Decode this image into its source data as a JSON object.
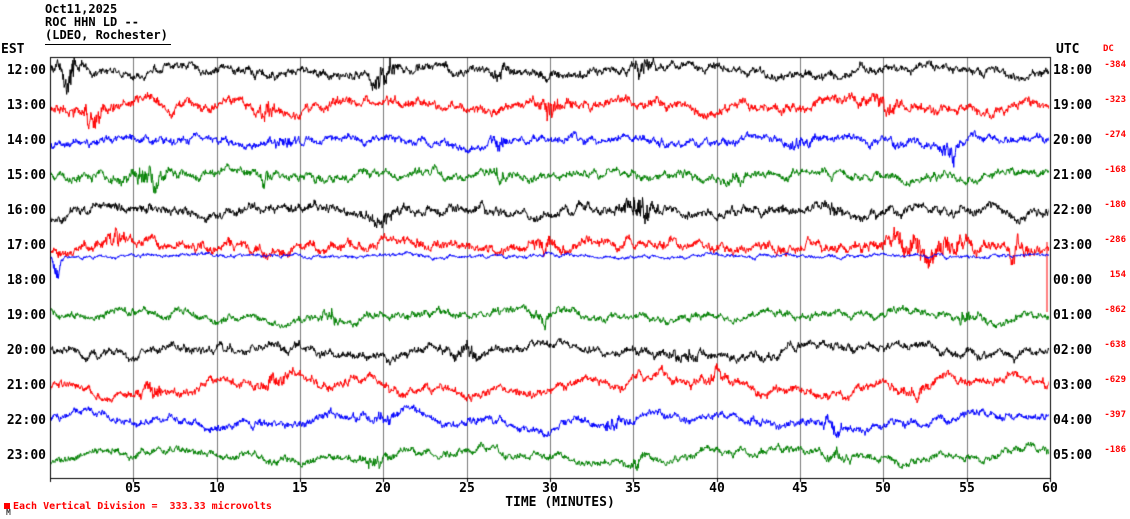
{
  "header": {
    "date": "Oct11,2025",
    "station": "ROC HHN LD --",
    "location": "(LDEO, Rochester)"
  },
  "axes": {
    "left_label": "EST",
    "right_label": "UTC",
    "dc_label": "DC",
    "x_title": "TIME (MINUTES)",
    "x_ticks": [
      "05",
      "10",
      "15",
      "20",
      "25",
      "30",
      "35",
      "40",
      "45",
      "50",
      "55",
      "60"
    ]
  },
  "footer": {
    "note": "Each Vertical Division =  333.33 microvolts",
    "corner_mark": "M"
  },
  "chart_data": {
    "type": "line",
    "title": "ROC HHN LD -- (LDEO, Rochester) helicorder, Oct11,2025",
    "x_range_minutes": [
      0,
      60
    ],
    "minutes_per_row": 60,
    "grid_minutes": 5,
    "vertical_division_microvolts": 333.33,
    "trace_color_cycle": [
      "#000000",
      "#ff0000",
      "#0000ff",
      "#008000"
    ],
    "rows": [
      {
        "est": "12:00",
        "utc": "18:00",
        "dc": "-384",
        "color": "#000000",
        "base_amp": 7,
        "wavy": 0.5,
        "events": [
          {
            "t": 1.3,
            "w": 0.5,
            "a": 2.5
          },
          {
            "t": 20,
            "w": 0.6,
            "a": 3
          },
          {
            "t": 27,
            "w": 0.4,
            "a": 1.2
          },
          {
            "t": 35.5,
            "w": 0.6,
            "a": 1.5
          }
        ]
      },
      {
        "est": "13:00",
        "utc": "19:00",
        "dc": "-323",
        "color": "#ff0000",
        "base_amp": 8,
        "wavy": 0.5,
        "events": [
          {
            "t": 2.5,
            "w": 0.8,
            "a": 1.5
          },
          {
            "t": 13,
            "w": 0.5,
            "a": 1.2
          },
          {
            "t": 30,
            "w": 0.5,
            "a": 2
          },
          {
            "t": 50,
            "w": 1,
            "a": 0.8
          }
        ]
      },
      {
        "est": "14:00",
        "utc": "20:00",
        "dc": "-274",
        "color": "#0000ff",
        "base_amp": 6.5,
        "wavy": 0.5,
        "events": [
          {
            "t": 14,
            "w": 0.5,
            "a": 1
          },
          {
            "t": 26.8,
            "w": 0.35,
            "a": 2.5
          },
          {
            "t": 45,
            "w": 0.6,
            "a": 1
          },
          {
            "t": 54,
            "w": 0.5,
            "a": 2
          }
        ]
      },
      {
        "est": "15:00",
        "utc": "21:00",
        "dc": "-168",
        "color": "#008000",
        "base_amp": 6.5,
        "wavy": 0.5,
        "events": [
          {
            "t": 5.8,
            "w": 1.2,
            "a": 1.8
          },
          {
            "t": 13,
            "w": 0.3,
            "a": 2
          },
          {
            "t": 27,
            "w": 0.5,
            "a": 1
          },
          {
            "t": 41,
            "w": 0.6,
            "a": 0.8
          }
        ]
      },
      {
        "est": "16:00",
        "utc": "22:00",
        "dc": "-180",
        "color": "#000000",
        "base_amp": 7.5,
        "wavy": 0.5,
        "events": [
          {
            "t": 20,
            "w": 0.8,
            "a": 1
          },
          {
            "t": 35.3,
            "w": 0.8,
            "a": 2.5
          },
          {
            "t": 47,
            "w": 0.6,
            "a": 0.8
          }
        ]
      },
      {
        "est": "17:00",
        "utc": "23:00",
        "dc": "-286",
        "color": "#ff0000",
        "base_amp": 8,
        "wavy": 0.5,
        "end_drop": 70,
        "events": [
          {
            "t": 4,
            "w": 0.6,
            "a": 1.2
          },
          {
            "t": 30,
            "w": 0.8,
            "a": 1
          },
          {
            "t": 52.5,
            "w": 2.2,
            "a": 1.6
          },
          {
            "t": 58,
            "w": 0.5,
            "a": 1
          }
        ]
      },
      {
        "est": "18:00",
        "utc": "00:00",
        "dc": " 154",
        "color": "#0000ff",
        "base_amp": 3,
        "wavy": 0.3,
        "offset": -25,
        "events": [
          {
            "t": 0.4,
            "w": 0.25,
            "a": 4
          }
        ]
      },
      {
        "est": "19:00",
        "utc": "01:00",
        "dc": "-862",
        "color": "#008000",
        "base_amp": 6,
        "wavy": 0.6,
        "events": [
          {
            "t": 16.8,
            "w": 0.5,
            "a": 1.5
          },
          {
            "t": 29.5,
            "w": 0.6,
            "a": 1.2
          },
          {
            "t": 55,
            "w": 0.8,
            "a": 0.8
          }
        ]
      },
      {
        "est": "20:00",
        "utc": "02:00",
        "dc": "-638",
        "color": "#000000",
        "base_amp": 7,
        "wavy": 0.7,
        "events": [
          {
            "t": 25,
            "w": 0.8,
            "a": 1
          },
          {
            "t": 38,
            "w": 0.8,
            "a": 1
          }
        ]
      },
      {
        "est": "21:00",
        "utc": "03:00",
        "dc": "-629",
        "color": "#ff0000",
        "base_amp": 7,
        "wavy": 1.2,
        "events": [
          {
            "t": 6,
            "w": 0.6,
            "a": 1.2
          },
          {
            "t": 13.5,
            "w": 0.6,
            "a": 1.6
          },
          {
            "t": 40,
            "w": 0.8,
            "a": 0.8
          },
          {
            "t": 52,
            "w": 0.8,
            "a": 1
          }
        ]
      },
      {
        "est": "22:00",
        "utc": "04:00",
        "dc": "-397",
        "color": "#0000ff",
        "base_amp": 6.5,
        "wavy": 1.0,
        "events": [
          {
            "t": 20,
            "w": 0.6,
            "a": 1
          },
          {
            "t": 33.8,
            "w": 0.4,
            "a": 1.8
          },
          {
            "t": 47,
            "w": 0.6,
            "a": 1
          }
        ]
      },
      {
        "est": "23:00",
        "utc": "05:00",
        "dc": "-186",
        "color": "#008000",
        "base_amp": 6,
        "wavy": 1.0,
        "events": [
          {
            "t": 19.5,
            "w": 0.6,
            "a": 1.2
          },
          {
            "t": 35,
            "w": 0.6,
            "a": 1
          },
          {
            "t": 47,
            "w": 0.6,
            "a": 1
          }
        ]
      }
    ]
  }
}
